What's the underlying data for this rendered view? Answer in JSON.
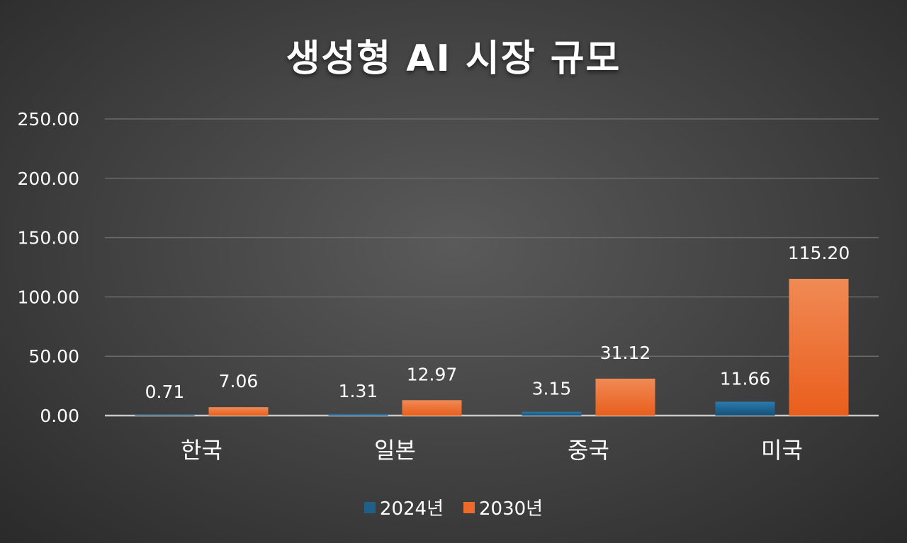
{
  "chart_data": {
    "type": "bar",
    "title": "생성형 AI 시장 규모",
    "categories": [
      "한국",
      "일본",
      "중국",
      "미국"
    ],
    "series": [
      {
        "name": "2024년",
        "values": [
          0.71,
          1.31,
          3.15,
          11.66
        ],
        "color": "#1f5f8a"
      },
      {
        "name": "2030년",
        "values": [
          7.06,
          12.97,
          31.12,
          115.2
        ],
        "color": "#ed6a2a"
      }
    ],
    "ylim": [
      0,
      250
    ],
    "yticks": [
      "0.00",
      "50.00",
      "100.00",
      "150.00",
      "200.00",
      "250.00"
    ],
    "data_labels": [
      [
        "0.71",
        "1.31",
        "3.15",
        "11.66"
      ],
      [
        "7.06",
        "12.97",
        "31.12",
        "115.20"
      ]
    ],
    "grid": true,
    "legend_position": "bottom",
    "xlabel": "",
    "ylabel": ""
  }
}
